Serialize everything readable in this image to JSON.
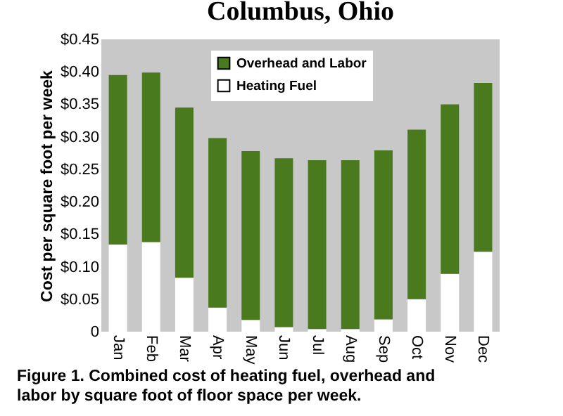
{
  "chart_data": {
    "type": "bar",
    "title": "Columbus, Ohio",
    "ylabel": "Cost per square foot per week",
    "categories": [
      "Jan",
      "Feb",
      "Mar",
      "Apr",
      "May",
      "Jun",
      "Jul",
      "Aug",
      "Sep",
      "Oct",
      "Nov",
      "Dec"
    ],
    "stacked": true,
    "series": [
      {
        "name": "Heating Fuel",
        "color": "#ffffff",
        "values": [
          0.134,
          0.138,
          0.083,
          0.037,
          0.018,
          0.007,
          0.004,
          0.004,
          0.019,
          0.05,
          0.089,
          0.123
        ]
      },
      {
        "name": "Overhead and Labor",
        "color": "#4a7a1e",
        "values": [
          0.261,
          0.261,
          0.262,
          0.261,
          0.26,
          0.26,
          0.26,
          0.26,
          0.26,
          0.261,
          0.261,
          0.26
        ]
      }
    ],
    "ylim": [
      0,
      0.45
    ],
    "yticks": [
      {
        "value": 0,
        "label": "0"
      },
      {
        "value": 0.05,
        "label": "$0.05"
      },
      {
        "value": 0.1,
        "label": "$0.10"
      },
      {
        "value": 0.15,
        "label": "$0.15"
      },
      {
        "value": 0.2,
        "label": "$0.20"
      },
      {
        "value": 0.25,
        "label": "$0.25"
      },
      {
        "value": 0.3,
        "label": "$0.30"
      },
      {
        "value": 0.35,
        "label": "$0.35"
      },
      {
        "value": 0.4,
        "label": "$0.40"
      },
      {
        "value": 0.45,
        "label": "$0.45"
      }
    ],
    "grid": false,
    "legend": "top",
    "annotations": [
      "Figure 1. Combined cost of heating fuel, overhead and labor by square foot of floor space per week."
    ]
  }
}
